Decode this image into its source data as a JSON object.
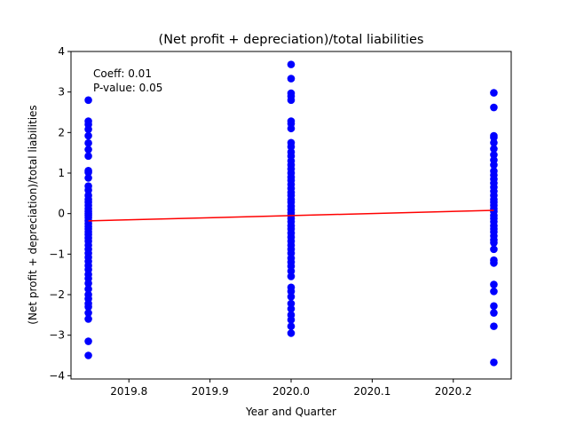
{
  "chart_data": {
    "type": "scatter",
    "title": "(Net profit + depreciation)/total liabilities",
    "xlabel": "Year and Quarter",
    "ylabel": "(Net profit + depreciation)/total liabilities",
    "xlim": [
      2019.7286,
      2020.2714
    ],
    "ylim": [
      -4.08,
      4.0
    ],
    "xticks": [
      2019.8,
      2019.9,
      2020.0,
      2020.1,
      2020.2
    ],
    "xtick_labels": [
      "2019.8",
      "2019.9",
      "2020.0",
      "2020.1",
      "2020.2"
    ],
    "yticks": [
      -4,
      -3,
      -2,
      -1,
      0,
      1,
      2,
      3,
      4
    ],
    "ytick_labels": [
      "−4",
      "−3",
      "−2",
      "−1",
      "0",
      "1",
      "2",
      "3",
      "4"
    ],
    "grid": false,
    "annotations": [
      "Coeff: 0.01",
      "P-value: 0.05"
    ],
    "series": [
      {
        "name": "observations",
        "color": "#0000ff",
        "marker": "circle",
        "points": [
          {
            "x": 2019.75,
            "ys": [
              2.8,
              2.28,
              2.2,
              2.08,
              1.92,
              1.74,
              1.58,
              1.42,
              1.06,
              1.02,
              0.88,
              0.68,
              0.58,
              0.45,
              0.35,
              0.28,
              0.2,
              0.12,
              0.05,
              0.0,
              -0.05,
              -0.1,
              -0.18,
              -0.25,
              -0.32,
              -0.38,
              -0.45,
              -0.52,
              -0.6,
              -0.68,
              -0.78,
              -0.88,
              -0.98,
              -1.08,
              -1.18,
              -1.28,
              -1.38,
              -1.5,
              -1.6,
              -1.72,
              -1.86,
              -2.0,
              -2.1,
              -2.22,
              -2.3,
              -2.45,
              -2.6,
              -3.15,
              -3.5
            ]
          },
          {
            "x": 2020.0,
            "ys": [
              3.68,
              3.33,
              2.97,
              2.9,
              2.8,
              2.28,
              2.22,
              2.1,
              1.75,
              1.65,
              1.52,
              1.42,
              1.3,
              1.2,
              1.1,
              1.0,
              0.9,
              0.82,
              0.72,
              0.62,
              0.52,
              0.45,
              0.35,
              0.28,
              0.18,
              0.1,
              0.02,
              -0.05,
              -0.12,
              -0.2,
              -0.3,
              -0.38,
              -0.48,
              -0.58,
              -0.68,
              -0.78,
              -0.88,
              -0.98,
              -1.1,
              -1.2,
              -1.3,
              -1.42,
              -1.55,
              -1.82,
              -1.92,
              -2.05,
              -2.22,
              -2.35,
              -2.5,
              -2.62,
              -2.78,
              -2.95
            ]
          },
          {
            "x": 2020.25,
            "ys": [
              2.98,
              2.62,
              1.92,
              1.88,
              1.75,
              1.6,
              1.45,
              1.32,
              1.2,
              1.05,
              0.95,
              0.85,
              0.75,
              0.65,
              0.55,
              0.45,
              0.35,
              0.28,
              0.2,
              0.12,
              0.05,
              -0.05,
              -0.12,
              -0.2,
              -0.3,
              -0.38,
              -0.45,
              -0.55,
              -0.65,
              -0.72,
              -0.88,
              -1.15,
              -1.22,
              -1.75,
              -1.92,
              -2.28,
              -2.45,
              -2.78,
              -3.67
            ]
          }
        ]
      },
      {
        "name": "regression line",
        "type": "line",
        "color": "#ff0000",
        "x": [
          2019.75,
          2020.25
        ],
        "y": [
          -0.18,
          0.08
        ]
      }
    ]
  }
}
